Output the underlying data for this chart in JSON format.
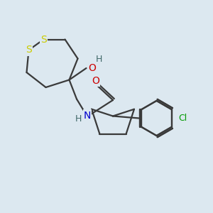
{
  "bg_color": "#dce8f0",
  "atom_colors": {
    "S": "#cccc00",
    "O": "#cc0000",
    "N": "#0000cc",
    "Cl": "#009900",
    "C": "#3a3a3a",
    "H": "#406868"
  },
  "bond_color": "#3a3a3a",
  "bond_width": 1.6,
  "figsize": [
    3.0,
    3.0
  ],
  "dpi": 100
}
